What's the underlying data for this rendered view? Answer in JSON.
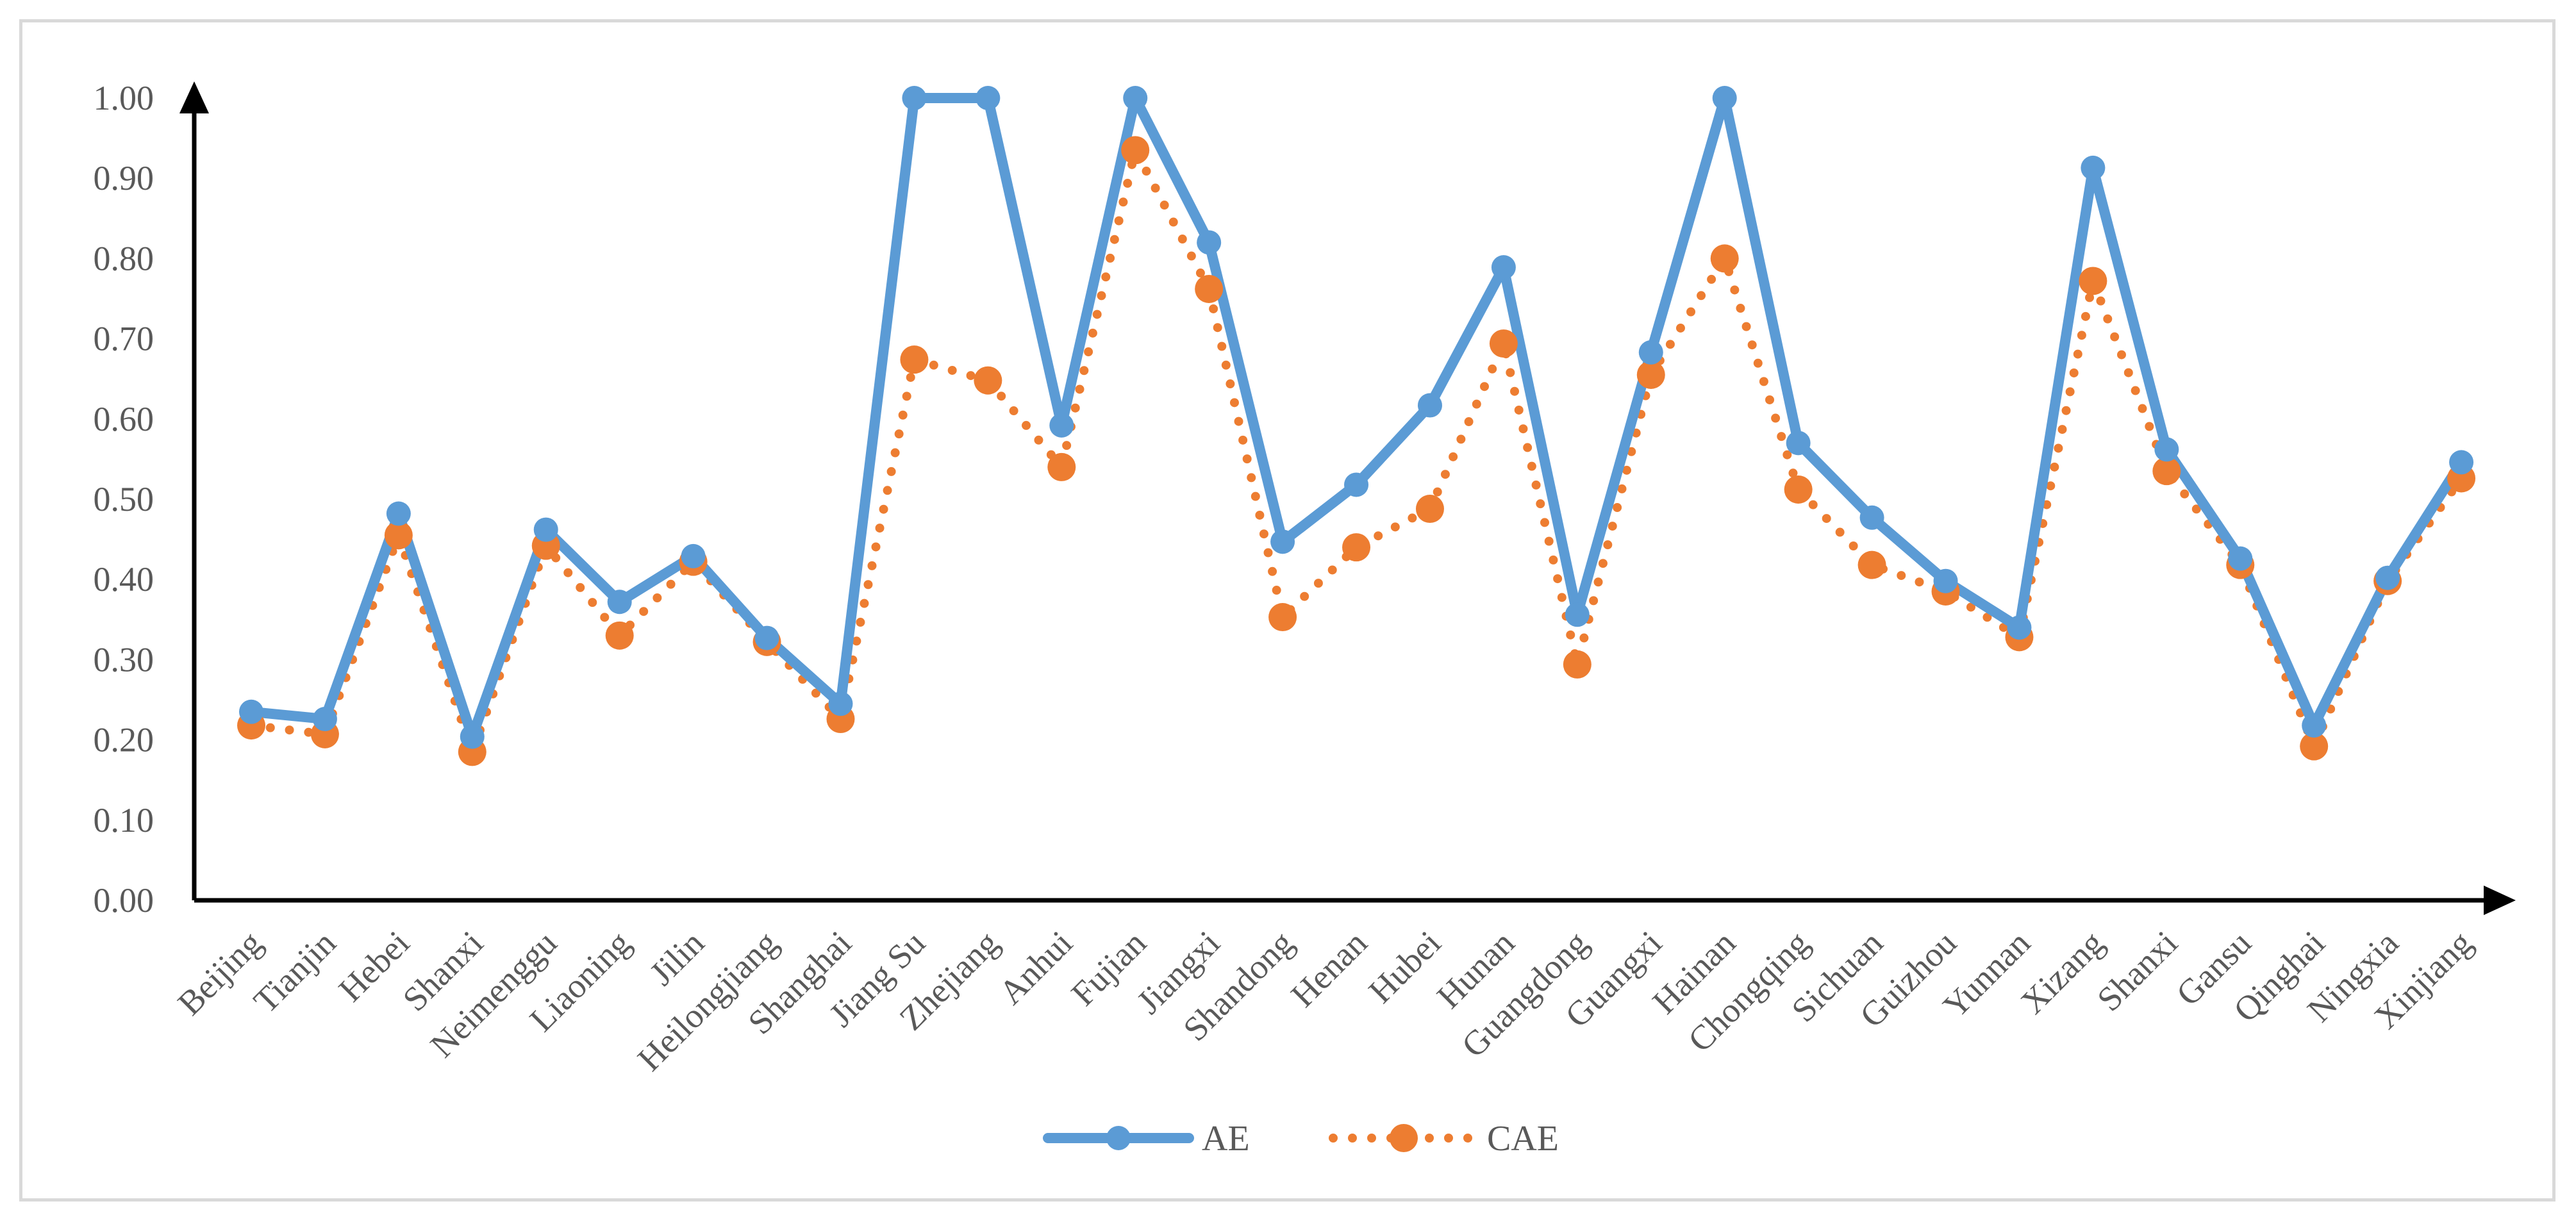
{
  "chart_data": {
    "type": "line",
    "title": "",
    "xlabel": "",
    "ylabel": "",
    "ylim": [
      0,
      1
    ],
    "yticks": [
      "0.00",
      "0.10",
      "0.20",
      "0.30",
      "0.40",
      "0.50",
      "0.60",
      "0.70",
      "0.80",
      "0.90",
      "1.00"
    ],
    "categories": [
      "Beijing",
      "Tianjin",
      "Hebei",
      "Shanxi",
      "Neimenggu",
      "Liaoning",
      "Jilin",
      "Heilongjiang",
      "Shanghai",
      "Jiang Su",
      "Zhejiang",
      "Anhui",
      "Fujian",
      "Jiangxi",
      "Shandong",
      "Henan",
      "Hubei",
      "Hunan",
      "Guangdong",
      "Guangxi",
      "Hainan",
      "Chongqing",
      "Sichuan",
      "Guizhou",
      "Yunnan",
      "Xizang",
      "Shanxi",
      "Gansu",
      "Qinghai",
      "Ningxia",
      "Xinjiang"
    ],
    "series": [
      {
        "name": "AE",
        "color": "#5b9bd5",
        "style": "solid",
        "values": [
          0.235,
          0.226,
          0.482,
          0.204,
          0.462,
          0.372,
          0.429,
          0.327,
          0.245,
          1.0,
          1.0,
          0.592,
          1.0,
          0.82,
          0.447,
          0.518,
          0.617,
          0.789,
          0.356,
          0.683,
          1.0,
          0.57,
          0.477,
          0.398,
          0.34,
          0.913,
          0.562,
          0.426,
          0.218,
          0.402,
          0.546
        ]
      },
      {
        "name": "CAE",
        "color": "#ed7d31",
        "style": "dotted",
        "values": [
          0.218,
          0.207,
          0.455,
          0.185,
          0.442,
          0.33,
          0.422,
          0.322,
          0.226,
          0.674,
          0.648,
          0.54,
          0.935,
          0.762,
          0.353,
          0.44,
          0.488,
          0.694,
          0.294,
          0.655,
          0.8,
          0.512,
          0.418,
          0.385,
          0.328,
          0.772,
          0.535,
          0.418,
          0.192,
          0.398,
          0.526
        ]
      }
    ],
    "legend_position": "bottom-center",
    "grid": false
  }
}
